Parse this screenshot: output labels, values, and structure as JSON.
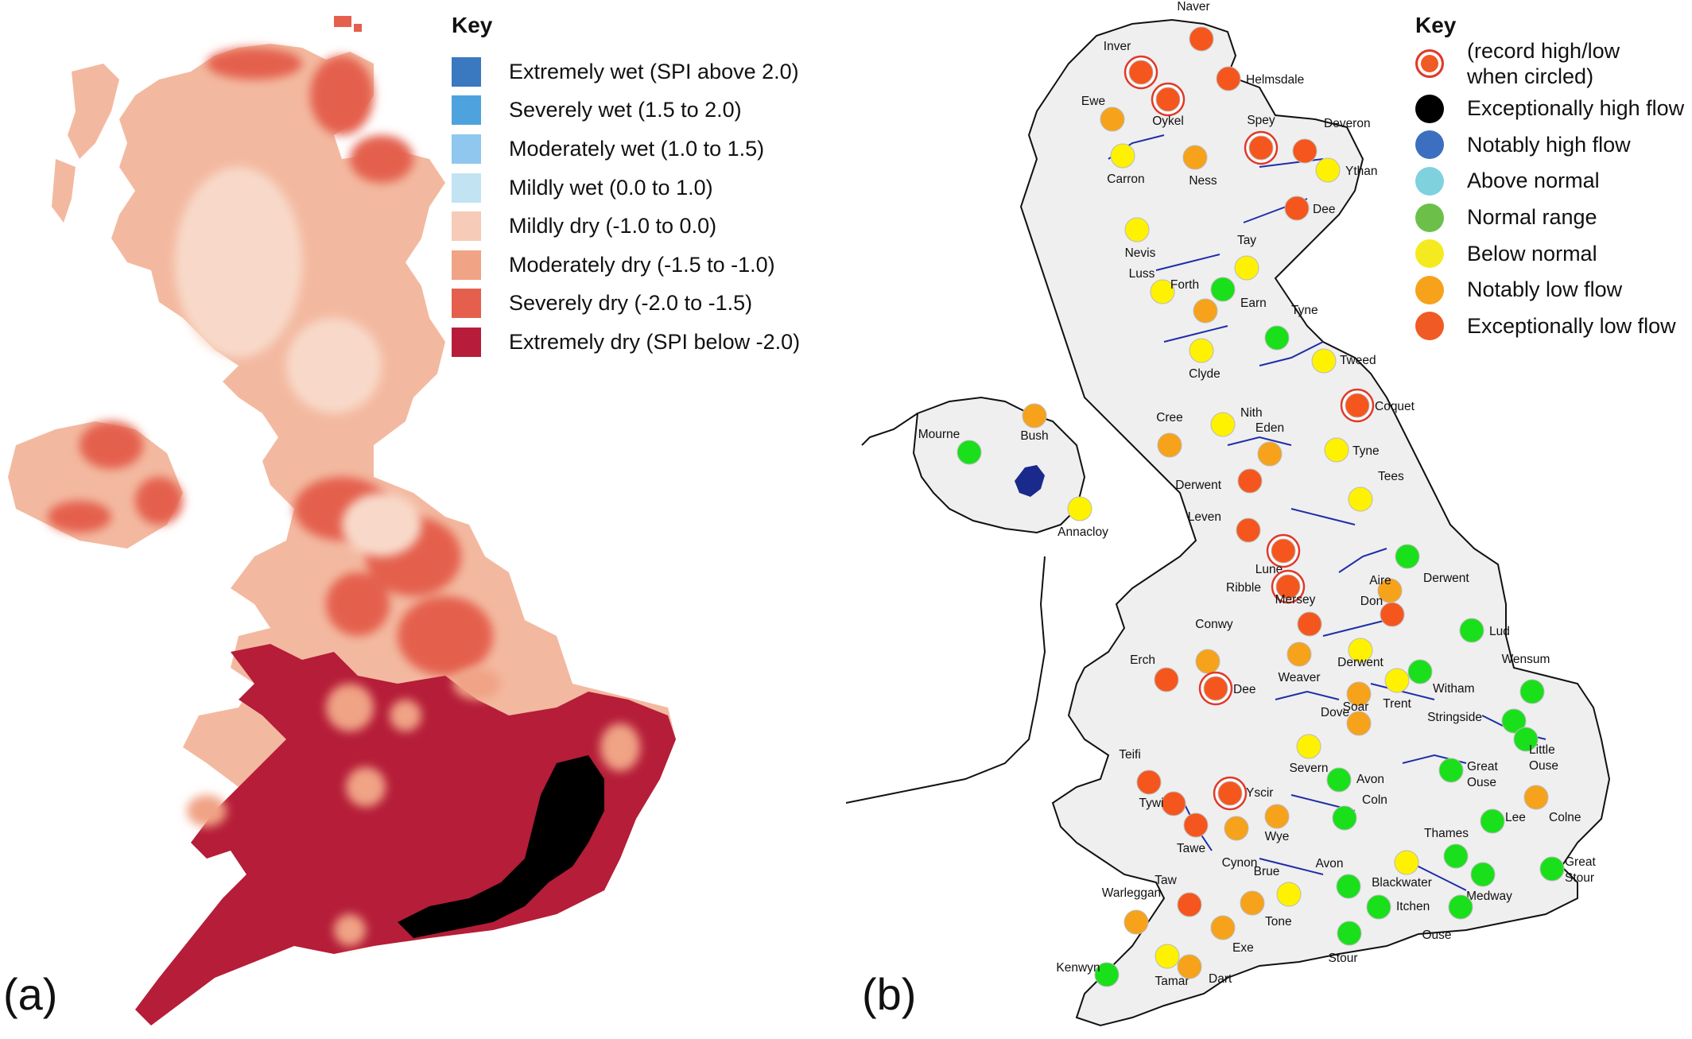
{
  "panel_a": {
    "letter": "(a)",
    "key_title": "Key",
    "key_items": [
      {
        "label": "Extremely wet (SPI above 2.0)",
        "color": "#3a78c0"
      },
      {
        "label": "Severely wet (1.5 to 2.0)",
        "color": "#4ea3de"
      },
      {
        "label": "Moderately wet (1.0 to 1.5)",
        "color": "#8fc7ee"
      },
      {
        "label": "Mildly wet (0.0 to 1.0)",
        "color": "#c2e4f2"
      },
      {
        "label": "Mildly dry (-1.0 to 0.0)",
        "color": "#f6cbb7"
      },
      {
        "label": "Moderately dry (-1.5 to -1.0)",
        "color": "#f0a385"
      },
      {
        "label": "Severely dry (-2.0 to -1.5)",
        "color": "#e4604d"
      },
      {
        "label": "Extremely dry (SPI below -2.0)",
        "color": "#b71d3a"
      }
    ],
    "map_colors": {
      "background_dry": "#f3b9a0",
      "extremely_dry": "#b51d38",
      "severely_dry": "#e36a55",
      "exceptional_high": "#000000"
    }
  },
  "panel_b": {
    "letter": "(b)",
    "key_title": "Key",
    "key_items": [
      {
        "label": "(record high/low when circled)",
        "color": "#f05a24",
        "circled": true
      },
      {
        "label": "Exceptionally high flow",
        "color": "#000000"
      },
      {
        "label": "Notably high flow",
        "color": "#3c6fc0"
      },
      {
        "label": "Above normal",
        "color": "#7fd1de"
      },
      {
        "label": "Normal range",
        "color": "#6cc04a"
      },
      {
        "label": "Below normal",
        "color": "#f5ea1f"
      },
      {
        "label": "Notably low flow",
        "color": "#f7a21b"
      },
      {
        "label": "Exceptionally low flow",
        "color": "#f05a24"
      }
    ],
    "status_colors": {
      "normal": "#19e01a",
      "below": "#fff200",
      "notably_low": "#f7a21b",
      "exceptional_low": "#f5561d",
      "record_ring": "#e0392a"
    },
    "stations": [
      {
        "name": "Naver",
        "status": "exceptional_low",
        "record": false
      },
      {
        "name": "Inver",
        "status": "exceptional_low",
        "record": true
      },
      {
        "name": "Helmsdale",
        "status": "exceptional_low",
        "record": false
      },
      {
        "name": "Oykel",
        "status": "exceptional_low",
        "record": true
      },
      {
        "name": "Ewe",
        "status": "notably_low",
        "record": false
      },
      {
        "name": "Spey",
        "status": "exceptional_low",
        "record": true
      },
      {
        "name": "Deveron",
        "status": "exceptional_low",
        "record": false
      },
      {
        "name": "Carron",
        "status": "below",
        "record": false
      },
      {
        "name": "Ness",
        "status": "notably_low",
        "record": false
      },
      {
        "name": "Ythan",
        "status": "below",
        "record": false
      },
      {
        "name": "Dee",
        "status": "exceptional_low",
        "record": false
      },
      {
        "name": "Nevis",
        "status": "below",
        "record": false
      },
      {
        "name": "Tay",
        "status": "below",
        "record": false
      },
      {
        "name": "Luss",
        "status": "below",
        "record": false
      },
      {
        "name": "Forth",
        "status": "notably_low",
        "record": false
      },
      {
        "name": "Earn",
        "status": "normal",
        "record": false
      },
      {
        "name": "Tyne",
        "status": "normal",
        "record": false
      },
      {
        "name": "Clyde",
        "status": "below",
        "record": false
      },
      {
        "name": "Tweed",
        "status": "below",
        "record": false
      },
      {
        "name": "Bush",
        "status": "notably_low",
        "record": false
      },
      {
        "name": "Mourne",
        "status": "normal",
        "record": false
      },
      {
        "name": "Annacloy",
        "status": "below",
        "record": false
      },
      {
        "name": "Coquet",
        "status": "exceptional_low",
        "record": true
      },
      {
        "name": "Cree",
        "status": "notably_low",
        "record": false
      },
      {
        "name": "Nith",
        "status": "below",
        "record": false
      },
      {
        "name": "Eden",
        "status": "notably_low",
        "record": false
      },
      {
        "name": "Tyne",
        "status": "below",
        "record": false
      },
      {
        "name": "Derwent",
        "status": "exceptional_low",
        "record": false
      },
      {
        "name": "Tees",
        "status": "below",
        "record": false
      },
      {
        "name": "Leven",
        "status": "exceptional_low",
        "record": false
      },
      {
        "name": "Lune",
        "status": "exceptional_low",
        "record": true
      },
      {
        "name": "Derwent",
        "status": "normal",
        "record": false
      },
      {
        "name": "Ribble",
        "status": "exceptional_low",
        "record": true
      },
      {
        "name": "Aire",
        "status": "notably_low",
        "record": false
      },
      {
        "name": "Mersey",
        "status": "exceptional_low",
        "record": false
      },
      {
        "name": "Don",
        "status": "exceptional_low",
        "record": false
      },
      {
        "name": "Lud",
        "status": "normal",
        "record": false
      },
      {
        "name": "Derwent",
        "status": "below",
        "record": false
      },
      {
        "name": "Conwy",
        "status": "notably_low",
        "record": false
      },
      {
        "name": "Weaver",
        "status": "notably_low",
        "record": false
      },
      {
        "name": "Wensum",
        "status": "normal",
        "record": false
      },
      {
        "name": "Erch",
        "status": "exceptional_low",
        "record": false
      },
      {
        "name": "Dee",
        "status": "exceptional_low",
        "record": true
      },
      {
        "name": "Witham",
        "status": "normal",
        "record": false
      },
      {
        "name": "Trent",
        "status": "below",
        "record": false
      },
      {
        "name": "Dove",
        "status": "notably_low",
        "record": false
      },
      {
        "name": "Stringside",
        "status": "normal",
        "record": false
      },
      {
        "name": "Soar",
        "status": "notably_low",
        "record": false
      },
      {
        "name": "Little Ouse",
        "status": "normal",
        "record": false
      },
      {
        "name": "Severn",
        "status": "below",
        "record": false
      },
      {
        "name": "Teifi",
        "status": "exceptional_low",
        "record": false
      },
      {
        "name": "Avon",
        "status": "normal",
        "record": false
      },
      {
        "name": "Great Ouse",
        "status": "normal",
        "record": false
      },
      {
        "name": "Yscir",
        "status": "exceptional_low",
        "record": true
      },
      {
        "name": "Tywi",
        "status": "exceptional_low",
        "record": false
      },
      {
        "name": "Coln",
        "status": "normal",
        "record": false
      },
      {
        "name": "Lee",
        "status": "normal",
        "record": false
      },
      {
        "name": "Colne",
        "status": "notably_low",
        "record": false
      },
      {
        "name": "Wye",
        "status": "notably_low",
        "record": false
      },
      {
        "name": "Tawe",
        "status": "exceptional_low",
        "record": false
      },
      {
        "name": "Cynon",
        "status": "notably_low",
        "record": false
      },
      {
        "name": "Thames",
        "status": "normal",
        "record": false
      },
      {
        "name": "Great Stour",
        "status": "normal",
        "record": false
      },
      {
        "name": "Brue",
        "status": "below",
        "record": false
      },
      {
        "name": "Avon",
        "status": "normal",
        "record": false
      },
      {
        "name": "Blackwater",
        "status": "below",
        "record": false
      },
      {
        "name": "Medway",
        "status": "normal",
        "record": false
      },
      {
        "name": "Taw",
        "status": "exceptional_low",
        "record": false
      },
      {
        "name": "Tone",
        "status": "notably_low",
        "record": false
      },
      {
        "name": "Itchen",
        "status": "normal",
        "record": false
      },
      {
        "name": "Ouse",
        "status": "normal",
        "record": false
      },
      {
        "name": "Warleggan",
        "status": "notably_low",
        "record": false
      },
      {
        "name": "Exe",
        "status": "notably_low",
        "record": false
      },
      {
        "name": "Stour",
        "status": "normal",
        "record": false
      },
      {
        "name": "Kenwyn",
        "status": "normal",
        "record": false
      },
      {
        "name": "Tamar",
        "status": "below",
        "record": false
      },
      {
        "name": "Dart",
        "status": "notably_low",
        "record": false
      }
    ]
  }
}
